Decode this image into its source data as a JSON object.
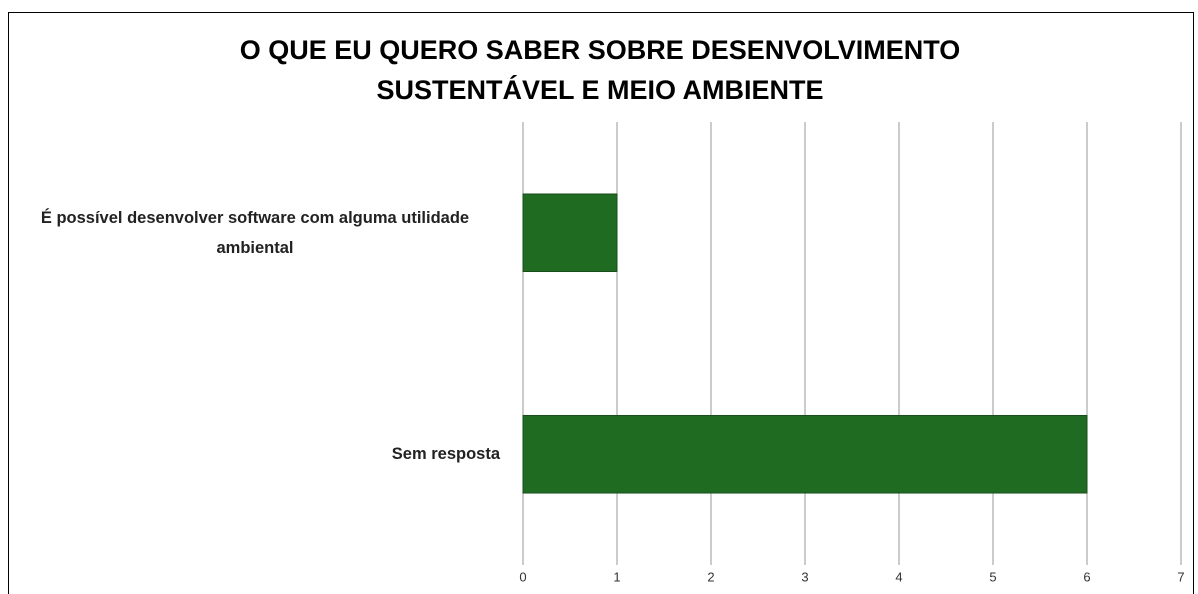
{
  "chart_data": {
    "type": "barh",
    "title": "O QUE EU QUERO SABER SOBRE DESENVOLVIMENTO SUSTENTÁVEL E MEIO AMBIENTE",
    "categories": [
      "É possível desenvolver software com alguma utilidade ambiental",
      "Sem resposta"
    ],
    "values": [
      1,
      6
    ],
    "color": "#1e6b21",
    "xlim": [
      0,
      7
    ],
    "xticks": [
      0,
      1,
      2,
      3,
      4,
      5,
      6,
      7
    ],
    "grid": true
  }
}
